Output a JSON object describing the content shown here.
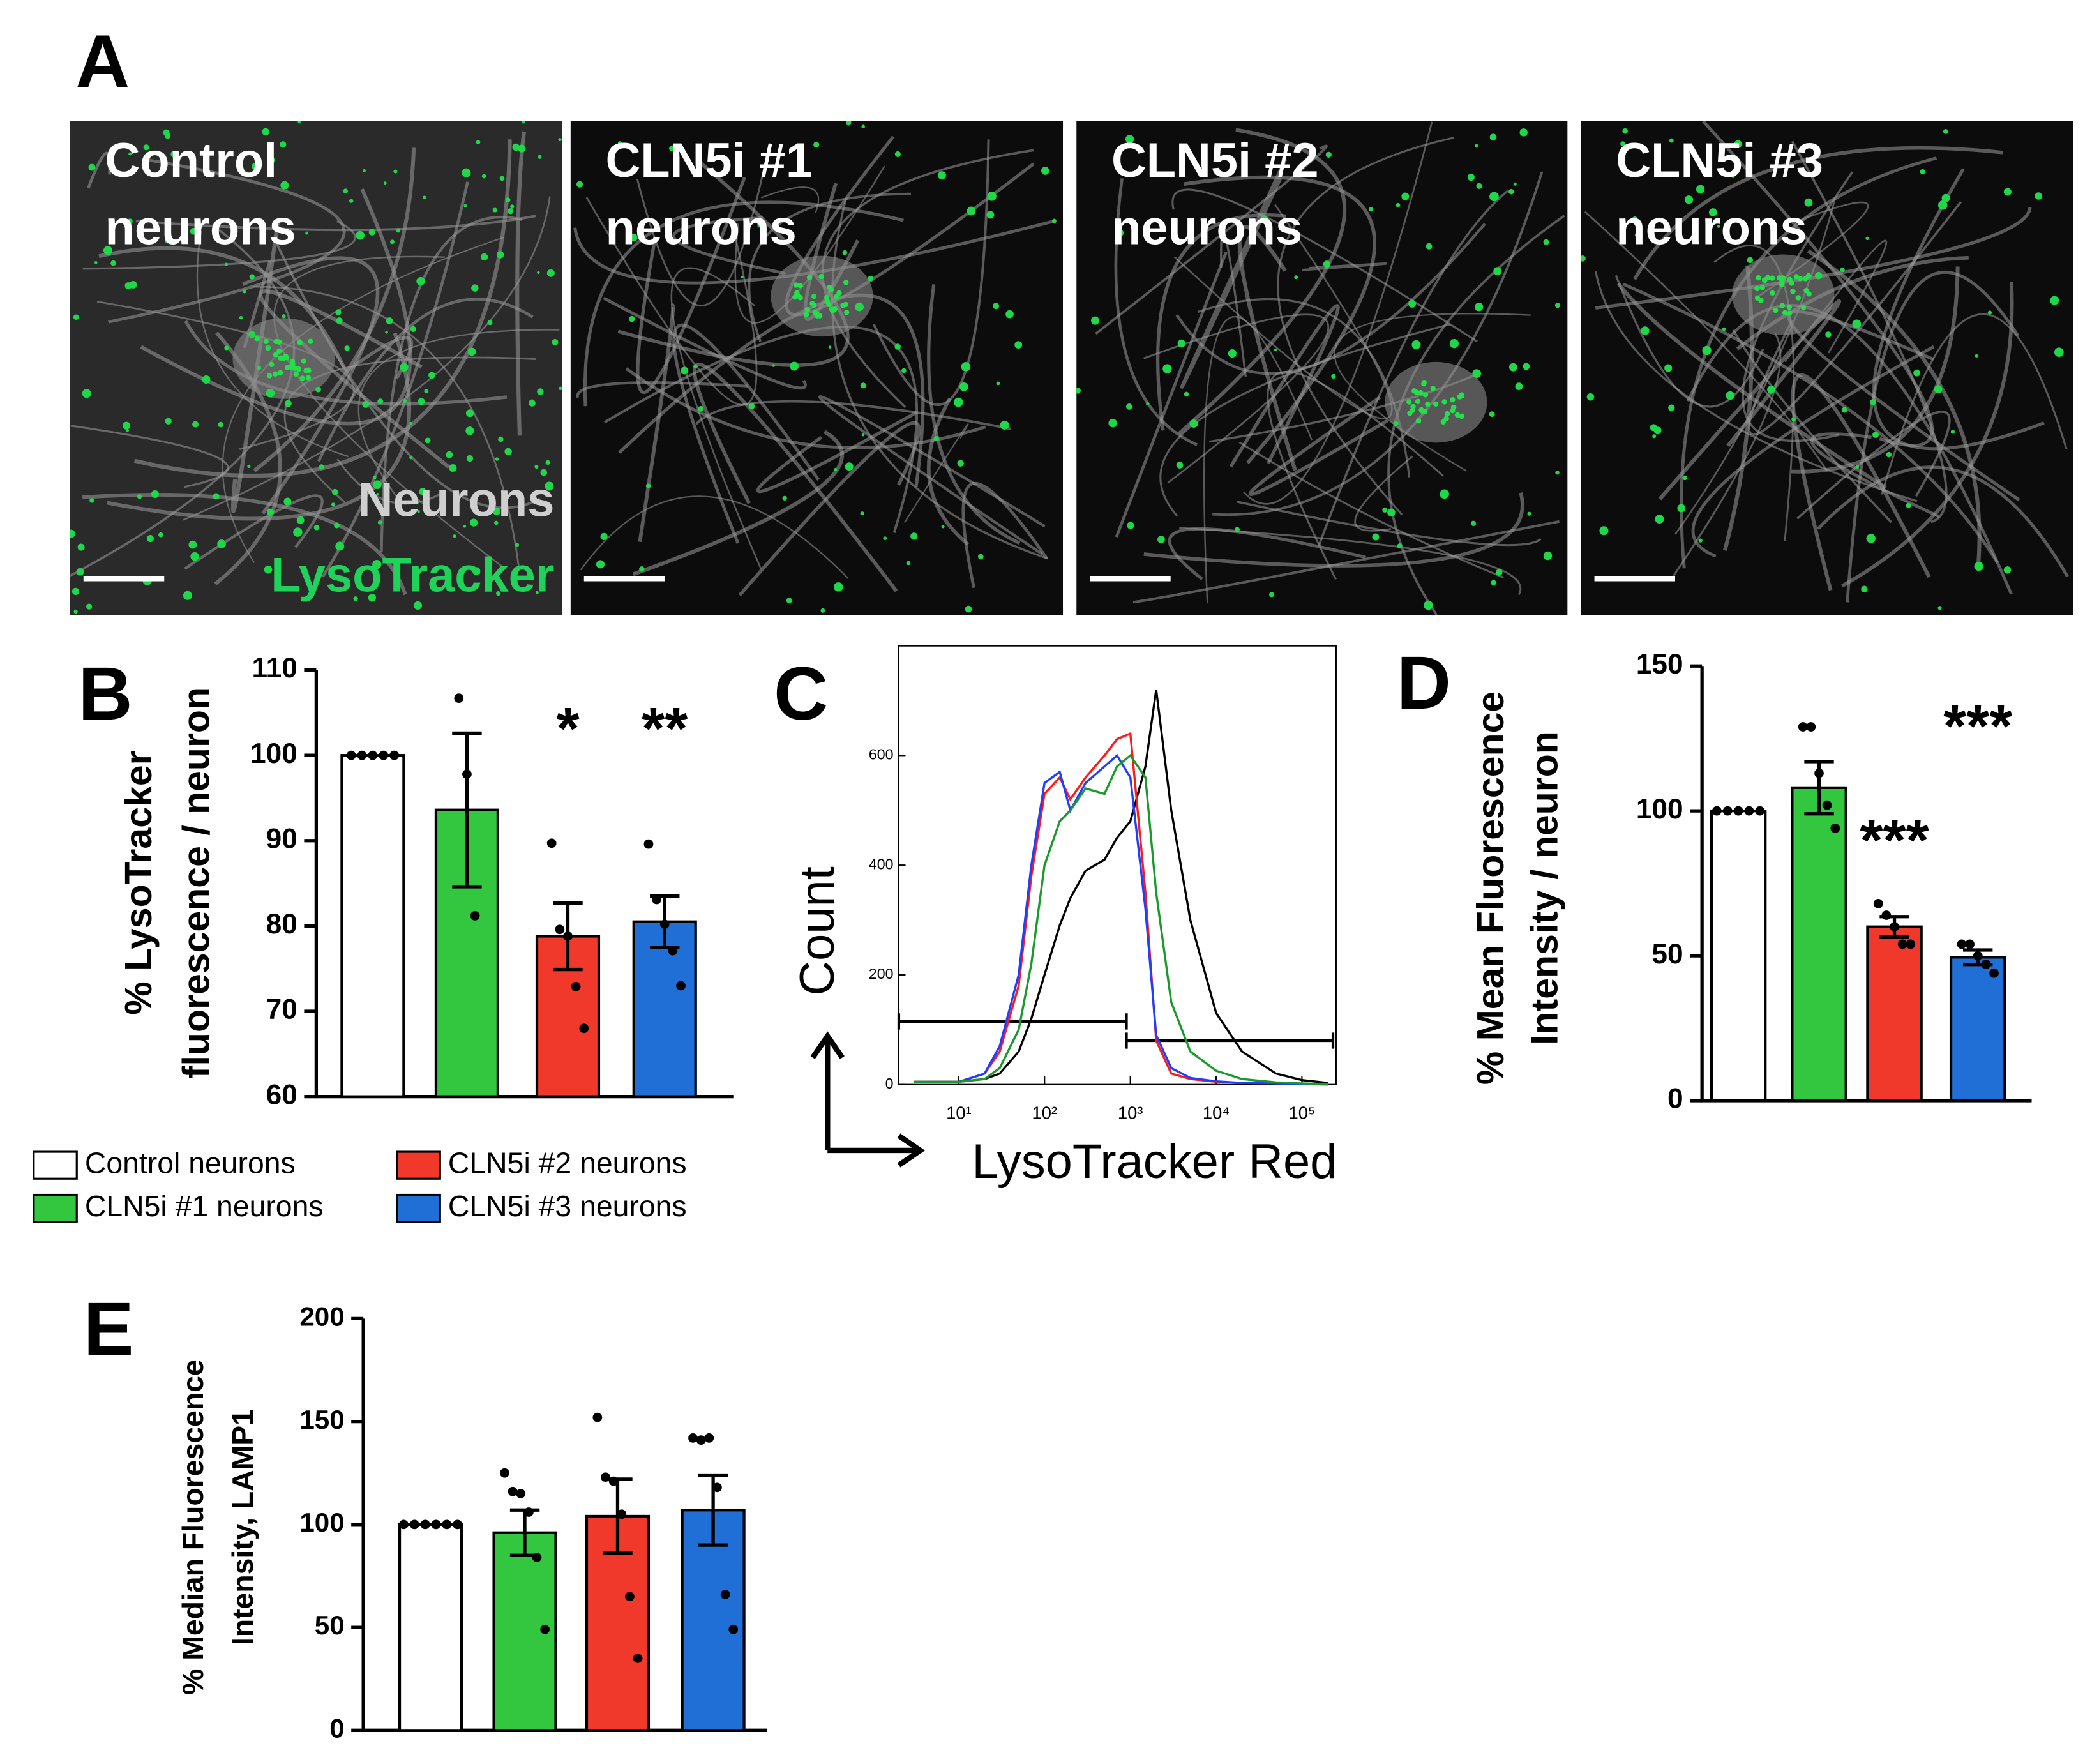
{
  "panel_a": {
    "label": "A",
    "images": [
      {
        "label": [
          "Control",
          "neurons"
        ],
        "stains": [
          "Neurons",
          "LysoTracker"
        ]
      },
      {
        "label": [
          "CLN5i #1",
          "neurons"
        ]
      },
      {
        "label": [
          "CLN5i #2",
          "neurons"
        ]
      },
      {
        "label": [
          "CLN5i #3",
          "neurons"
        ]
      }
    ]
  },
  "chart_data": [
    {
      "type": "bar",
      "panel": "B",
      "ylabel": [
        "% LysoTracker",
        "fluorescence / neuron"
      ],
      "categories": [
        "Control neurons",
        "CLN5i #1 neurons",
        "CLN5i #2 neurons",
        "CLN5i #3 neurons"
      ],
      "colors": [
        "#ffffff",
        "#33c63f",
        "#f0392b",
        "#1f6fd6"
      ],
      "values": [
        100,
        93.6,
        78.8,
        80.5
      ],
      "errors": [
        0,
        9,
        3.9,
        3
      ],
      "points": [
        [
          100,
          100,
          100,
          100,
          100
        ],
        [
          106.7,
          97.8,
          81.2
        ],
        [
          89.7,
          79.6,
          78.8,
          72.9,
          68.0
        ],
        [
          89.6,
          83.1,
          80.2,
          77.1,
          73.0
        ]
      ],
      "annotations": [
        null,
        null,
        "*",
        "**"
      ],
      "ylim": [
        60,
        110
      ],
      "yticks": [
        60,
        70,
        80,
        90,
        100,
        110
      ]
    },
    {
      "type": "line",
      "panel": "C",
      "xlabel": "LysoTracker Red",
      "ylabel": "Count",
      "xscale": "log",
      "x": [
        3,
        5,
        10,
        20,
        30,
        50,
        70,
        100,
        150,
        200,
        300,
        500,
        700,
        1000,
        1500,
        2000,
        3000,
        5000,
        10000,
        20000,
        50000,
        100000,
        200000
      ],
      "series": [
        {
          "color": "#000000",
          "values": [
            5,
            5,
            5,
            10,
            20,
            60,
            120,
            200,
            290,
            340,
            390,
            410,
            450,
            480,
            580,
            720,
            500,
            300,
            130,
            60,
            20,
            8,
            3
          ]
        },
        {
          "color": "#ff1a1a",
          "values": [
            5,
            5,
            5,
            20,
            60,
            180,
            380,
            530,
            560,
            520,
            560,
            600,
            630,
            640,
            350,
            80,
            20,
            10,
            5,
            3,
            2,
            1,
            0
          ]
        },
        {
          "color": "#1f3fff",
          "values": [
            5,
            5,
            5,
            20,
            70,
            200,
            400,
            550,
            570,
            500,
            550,
            580,
            600,
            560,
            320,
            90,
            30,
            12,
            6,
            3,
            2,
            1,
            0
          ]
        },
        {
          "color": "#1a9a2a",
          "values": [
            5,
            5,
            5,
            10,
            30,
            100,
            220,
            400,
            480,
            500,
            540,
            530,
            580,
            600,
            560,
            350,
            150,
            60,
            25,
            10,
            4,
            2,
            1
          ]
        }
      ],
      "gates": [
        {
          "x": [
            2,
            900
          ],
          "y": 115
        },
        {
          "x": [
            900,
            230000
          ],
          "y": 80
        }
      ],
      "xlim": [
        2,
        250000
      ],
      "ylim": [
        0,
        800
      ],
      "xticks": [
        {
          "value": 10,
          "label": "10¹"
        },
        {
          "value": 100,
          "label": "10²"
        },
        {
          "value": 1000,
          "label": "10³"
        },
        {
          "value": 10000,
          "label": "10⁴"
        },
        {
          "value": 100000,
          "label": "10⁵"
        }
      ],
      "yticks": [
        0,
        200,
        400,
        600
      ]
    },
    {
      "type": "bar",
      "panel": "D",
      "ylabel": [
        "% Mean Fluorescence",
        "Intensity / neuron"
      ],
      "colors": [
        "#ffffff",
        "#33c63f",
        "#f0392b",
        "#1f6fd6"
      ],
      "values": [
        100,
        108,
        60,
        49.5
      ],
      "errors": [
        0,
        9,
        3.5,
        2.5
      ],
      "points": [
        [
          100,
          100,
          100,
          100,
          100
        ],
        [
          129,
          129,
          113,
          102,
          94
        ],
        [
          68,
          64,
          60,
          54,
          54
        ],
        [
          54,
          54,
          50,
          47,
          44
        ]
      ],
      "annotations": [
        null,
        null,
        "***",
        "***"
      ],
      "ylim": [
        0,
        150
      ],
      "yticks": [
        0,
        50,
        100,
        150
      ]
    },
    {
      "type": "bar",
      "panel": "E",
      "ylabel": [
        "% Median Fluorescence",
        "Intensity, LAMP1"
      ],
      "colors": [
        "#ffffff",
        "#33c63f",
        "#f0392b",
        "#1f6fd6"
      ],
      "values": [
        100,
        96,
        104,
        107
      ],
      "errors": [
        0,
        11,
        18,
        17
      ],
      "points": [
        [
          100,
          100,
          100,
          100,
          100,
          100
        ],
        [
          125,
          116,
          115,
          106,
          84,
          49
        ],
        [
          152,
          123,
          121,
          105,
          65,
          35
        ],
        [
          142,
          141,
          142,
          118,
          66,
          49
        ]
      ],
      "ylim": [
        0,
        200
      ],
      "yticks": [
        0,
        50,
        100,
        150,
        200
      ]
    }
  ]
}
